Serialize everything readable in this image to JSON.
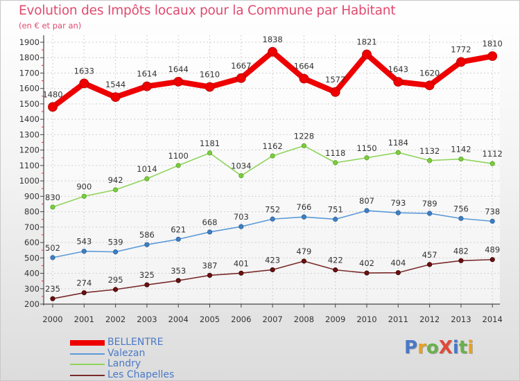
{
  "title": "Evolution des Impôts locaux pour la Commune par Habitant",
  "subtitle": "(en € et par an)",
  "logo": {
    "text": "ProXiti",
    "colors": [
      "#4a78c6",
      "#e8a020",
      "#6ab04c",
      "#e04a3a",
      "#4a78c6",
      "#6ab04c",
      "#e8a020"
    ]
  },
  "chart_data": {
    "type": "line",
    "title": "Evolution des Impôts locaux pour la Commune par Habitant",
    "subtitle": "(en € et par an)",
    "xlabel": "",
    "ylabel": "",
    "x": [
      "2000",
      "2001",
      "2002",
      "2003",
      "2004",
      "2005",
      "2006",
      "2007",
      "2008",
      "2009",
      "2010",
      "2011",
      "2012",
      "2013",
      "2014"
    ],
    "ylim": [
      200,
      1900
    ],
    "yticks": [
      200,
      300,
      400,
      500,
      600,
      700,
      800,
      900,
      1000,
      1100,
      1200,
      1300,
      1400,
      1500,
      1600,
      1700,
      1800,
      1900
    ],
    "grid": true,
    "legend_position": "bottom-left",
    "series": [
      {
        "name": "BELLENTRE",
        "color": "#ee0000",
        "values": [
          1480,
          1633,
          1544,
          1614,
          1644,
          1610,
          1667,
          1838,
          1664,
          1577,
          1821,
          1643,
          1620,
          1772,
          1810
        ],
        "labels": [
          "1480",
          "1633",
          "1544",
          "1614",
          "1644",
          "1610",
          "1667",
          "1838",
          "1664",
          "1577",
          "1821",
          "1643",
          "1620",
          "1772",
          "1810"
        ]
      },
      {
        "name": "Valezan",
        "color": "#4a8fd4",
        "values": [
          502,
          543,
          539,
          586,
          621,
          668,
          703,
          752,
          766,
          751,
          807,
          793,
          789,
          756,
          738
        ],
        "labels": [
          "502",
          "543",
          "539",
          "586",
          "621",
          "668",
          "703",
          "752",
          "766",
          "751",
          "807",
          "793",
          "789",
          "756",
          "738"
        ]
      },
      {
        "name": "Landry",
        "color": "#8fd45a",
        "values": [
          830,
          900,
          942,
          1014,
          1100,
          1181,
          1034,
          1162,
          1228,
          1118,
          1150,
          1184,
          1132,
          1142,
          1112
        ],
        "labels": [
          "830",
          "900",
          "942",
          "1014",
          "1100",
          "1181",
          "1034",
          "1162",
          "1228",
          "1118",
          "1150",
          "1184",
          "1132",
          "1142",
          "1112"
        ]
      },
      {
        "name": "Les Chapelles",
        "color": "#6b1a1a",
        "values": [
          235,
          274,
          295,
          325,
          353,
          387,
          401,
          423,
          479,
          422,
          402,
          404,
          457,
          482,
          489
        ],
        "labels": [
          "235",
          "274",
          "295",
          "325",
          "353",
          "387",
          "401",
          "423",
          "479",
          "422",
          "402",
          "404",
          "457",
          "482",
          "489"
        ]
      }
    ]
  }
}
